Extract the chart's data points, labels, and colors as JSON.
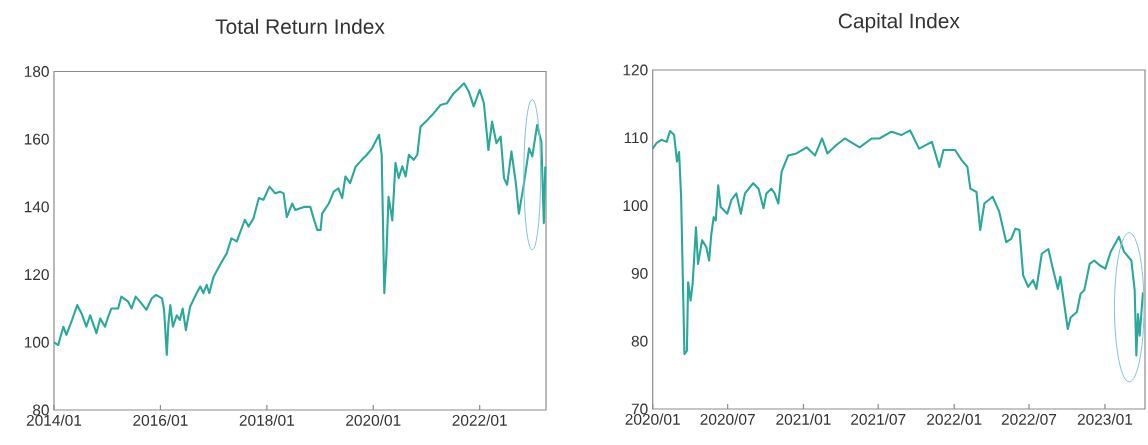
{
  "chart_data": [
    {
      "type": "line",
      "title": "Total Return Index",
      "x": [
        "2014-01-01",
        "2014-01-30",
        "2014-03-06",
        "2014-03-27",
        "2014-04-30",
        "2014-06-09",
        "2014-07-08",
        "2014-08-11",
        "2014-09-06",
        "2014-10-19",
        "2014-11-14",
        "2014-12-17",
        "2015-01-08",
        "2015-01-30",
        "2015-03-17",
        "2015-04-08",
        "2015-05-25",
        "2015-06-17",
        "2015-07-15",
        "2015-08-14",
        "2015-09-27",
        "2015-11-03",
        "2015-12-02",
        "2016-01-12",
        "2016-01-26",
        "2016-02-14",
        "2016-02-25",
        "2016-03-09",
        "2016-03-27",
        "2016-04-22",
        "2016-05-14",
        "2016-06-02",
        "2016-06-24",
        "2016-07-23",
        "2016-09-06",
        "2016-10-01",
        "2016-10-23",
        "2016-11-14",
        "2016-12-02",
        "2017-01-01",
        "2017-02-14",
        "2017-04-01",
        "2017-05-03",
        "2017-06-09",
        "2017-08-03",
        "2017-08-29",
        "2017-10-01",
        "2017-11-07",
        "2017-12-09",
        "2018-01-19",
        "2018-02-28",
        "2018-04-01",
        "2018-04-26",
        "2018-05-18",
        "2018-06-24",
        "2018-07-15",
        "2018-09-13",
        "2018-10-26",
        "2018-11-18",
        "2018-12-13",
        "2019-01-05",
        "2019-01-15",
        "2019-03-02",
        "2019-04-05",
        "2019-05-07",
        "2019-06-02",
        "2019-06-24",
        "2019-07-26",
        "2019-09-02",
        "2019-10-15",
        "2019-11-18",
        "2019-12-24",
        "2020-02-10",
        "2020-02-28",
        "2020-03-17",
        "2020-04-01",
        "2020-04-15",
        "2020-05-11",
        "2020-06-02",
        "2020-06-24",
        "2020-07-19",
        "2020-08-11",
        "2020-09-02",
        "2020-10-05",
        "2020-10-30",
        "2020-11-21",
        "2021-01-08",
        "2021-02-10",
        "2021-03-02",
        "2021-04-07",
        "2021-05-21",
        "2021-07-07",
        "2021-08-11",
        "2021-09-16",
        "2021-10-19",
        "2021-11-21",
        "2022-01-01",
        "2022-01-30",
        "2022-03-02",
        "2022-03-27",
        "2022-04-26",
        "2022-05-25",
        "2022-06-17",
        "2022-07-08",
        "2022-08-07",
        "2022-09-06",
        "2022-09-27",
        "2022-10-30",
        "2022-12-06",
        "2022-12-28",
        "2023-01-30",
        "2023-02-28",
        "2023-03-17",
        "2023-03-27"
      ],
      "series": [
        {
          "color": "#2aa89a",
          "values": [
            100,
            99.2,
            104.6,
            102.2,
            106,
            111,
            108.6,
            104.6,
            108,
            102.7,
            107,
            104.6,
            107.6,
            110,
            110,
            113.5,
            112,
            110,
            113.5,
            112,
            109.6,
            113,
            114,
            113,
            109.6,
            96.3,
            105.6,
            111,
            104.6,
            108,
            106.6,
            110,
            103.6,
            110.5,
            114.5,
            116.5,
            114.5,
            117,
            114.5,
            119.4,
            122.9,
            126.3,
            130.7,
            129.8,
            136.2,
            134.2,
            136.6,
            142.6,
            142.1,
            146,
            144,
            144.5,
            144,
            137,
            141,
            139.1,
            140,
            140,
            136.6,
            133.2,
            133.2,
            138,
            141,
            144.5,
            145.5,
            142.6,
            149,
            147,
            151.9,
            153.9,
            155.4,
            157.3,
            161.3,
            155.4,
            114.5,
            126.3,
            143,
            136,
            153,
            148.5,
            152,
            149,
            155.4,
            153.9,
            155.4,
            163.7,
            165.7,
            167.2,
            168.2,
            170.1,
            170.6,
            173.6,
            175,
            176.5,
            174,
            169.7,
            174.6,
            170.6,
            156.8,
            165.2,
            158.8,
            160.8,
            148.5,
            146.5,
            156.4,
            147,
            138,
            146.5,
            157.3,
            154.9,
            164.2,
            159.3,
            135.2,
            151.9
          ]
        }
      ],
      "xlim": [
        "2014-01-01",
        "2023-04-01"
      ],
      "xticks": [
        {
          "value": "2014-01-01",
          "label": "2014/01"
        },
        {
          "value": "2016-01-01",
          "label": "2016/01"
        },
        {
          "value": "2018-01-01",
          "label": "2018/01"
        },
        {
          "value": "2020-01-01",
          "label": "2020/01"
        },
        {
          "value": "2022-01-01",
          "label": "2022/01"
        }
      ],
      "ylim": [
        80,
        180
      ],
      "yticks": [
        80,
        100,
        120,
        140,
        160,
        180
      ]
    },
    {
      "type": "line",
      "title": "Capital Index",
      "x": [
        "2020-01-01",
        "2020-01-10",
        "2020-01-22",
        "2020-02-04",
        "2020-02-12",
        "2020-02-22",
        "2020-02-29",
        "2020-03-05",
        "2020-03-10",
        "2020-03-18",
        "2020-03-24",
        "2020-03-27",
        "2020-04-02",
        "2020-04-07",
        "2020-04-15",
        "2020-04-20",
        "2020-04-30",
        "2020-05-10",
        "2020-05-17",
        "2020-05-22",
        "2020-05-28",
        "2020-06-02",
        "2020-06-08",
        "2020-06-14",
        "2020-06-30",
        "2020-07-10",
        "2020-07-22",
        "2020-08-02",
        "2020-08-12",
        "2020-09-01",
        "2020-09-14",
        "2020-09-26",
        "2020-10-03",
        "2020-10-15",
        "2020-10-23",
        "2020-11-01",
        "2020-11-09",
        "2020-11-25",
        "2020-12-15",
        "2021-01-09",
        "2021-01-29",
        "2021-02-15",
        "2021-02-28",
        "2021-03-21",
        "2021-04-11",
        "2021-05-17",
        "2021-06-15",
        "2021-07-04",
        "2021-08-02",
        "2021-08-26",
        "2021-09-16",
        "2021-10-08",
        "2021-11-08",
        "2021-11-26",
        "2021-12-06",
        "2022-01-03",
        "2022-01-19",
        "2022-02-02",
        "2022-02-09",
        "2022-02-24",
        "2022-03-05",
        "2022-03-15",
        "2022-04-04",
        "2022-04-20",
        "2022-05-07",
        "2022-05-19",
        "2022-05-29",
        "2022-06-08",
        "2022-06-17",
        "2022-06-29",
        "2022-07-11",
        "2022-07-19",
        "2022-08-01",
        "2022-08-17",
        "2022-08-27",
        "2022-09-09",
        "2022-09-15",
        "2022-10-03",
        "2022-10-10",
        "2022-10-25",
        "2022-11-03",
        "2022-11-12",
        "2022-11-25",
        "2022-12-06",
        "2022-12-19",
        "2023-01-02",
        "2023-01-15",
        "2023-02-04",
        "2023-02-16",
        "2023-03-06",
        "2023-03-14",
        "2023-03-18",
        "2023-03-22",
        "2023-03-26",
        "2023-04-03"
      ],
      "series": [
        {
          "color": "#2aa89a",
          "values": [
            108.4,
            109.2,
            109.7,
            109.4,
            111,
            110.4,
            106.5,
            107.9,
            101.3,
            78.1,
            78.6,
            88.7,
            86,
            88.5,
            96.8,
            91.4,
            94.9,
            93.9,
            91.9,
            95.6,
            98.3,
            97.8,
            103,
            99.8,
            98.8,
            100.8,
            101.8,
            98.8,
            101.8,
            103.3,
            102.5,
            99.6,
            101.8,
            102.5,
            101.8,
            100.3,
            105,
            107.4,
            107.7,
            108.6,
            107.4,
            109.9,
            107.7,
            108.9,
            109.9,
            108.6,
            109.9,
            109.9,
            110.9,
            110.4,
            111.1,
            108.4,
            109.4,
            105.7,
            108.2,
            108.2,
            106.7,
            105.7,
            102.5,
            102,
            96.4,
            100.3,
            101.3,
            99.1,
            94.6,
            95.1,
            96.6,
            96.4,
            89.7,
            88,
            89,
            87.7,
            92.9,
            93.6,
            90.9,
            87.7,
            89.5,
            81.8,
            83.5,
            84.3,
            87,
            87.5,
            91.4,
            91.9,
            91.2,
            90.7,
            93.2,
            95.4,
            93.2,
            91.9,
            87.5,
            77.9,
            84,
            80.8,
            87.2
          ]
        }
      ],
      "xlim": [
        "2020-01-01",
        "2023-04-08"
      ],
      "xticks": [
        {
          "value": "2020-01-01",
          "label": "2020/01"
        },
        {
          "value": "2020-07-01",
          "label": "2020/07"
        },
        {
          "value": "2021-01-01",
          "label": "2021/01"
        },
        {
          "value": "2021-07-01",
          "label": "2021/07"
        },
        {
          "value": "2022-01-01",
          "label": "2022/01"
        },
        {
          "value": "2022-07-01",
          "label": "2022/07"
        },
        {
          "value": "2023-01-01",
          "label": "2023/01"
        }
      ],
      "ylim": [
        70,
        120
      ],
      "yticks": [
        70,
        80,
        90,
        100,
        110,
        120
      ]
    }
  ]
}
